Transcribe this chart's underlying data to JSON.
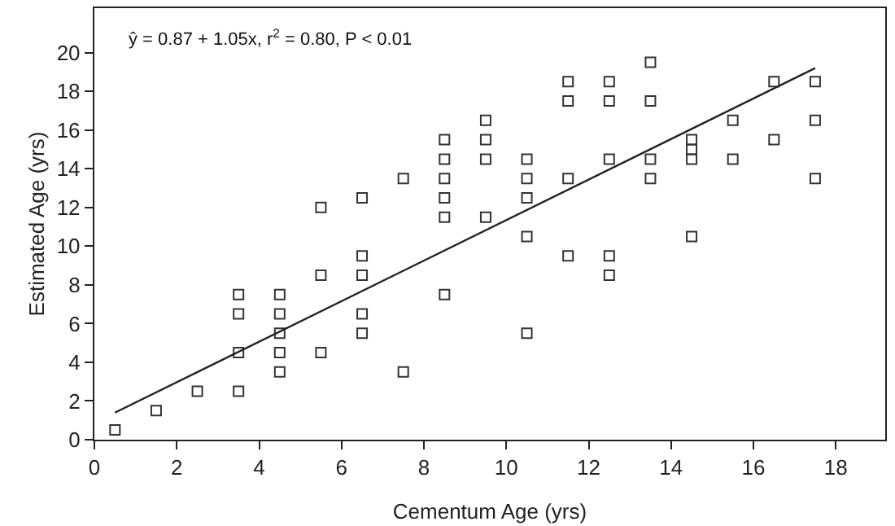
{
  "chart_data": {
    "type": "scatter",
    "xlabel": "Cementum Age (yrs)",
    "ylabel": "Estimated Age (yrs)",
    "xlim": [
      0,
      19.2
    ],
    "ylim": [
      0,
      22.3
    ],
    "xticks": [
      0,
      2,
      4,
      6,
      8,
      10,
      12,
      14,
      16,
      18
    ],
    "yticks": [
      0,
      2,
      4,
      6,
      8,
      10,
      12,
      14,
      16,
      18,
      20
    ],
    "marker": "square",
    "annotations": [
      {
        "text": "ŷ = 0.87 + 1.05x, r$^{2}$ = 0.80, P < 0.01"
      }
    ],
    "series": [
      {
        "color": "#333333",
        "x": [
          0.5,
          1.5,
          2.5,
          3.5,
          3.5,
          3.5,
          3.5,
          4.5,
          4.5,
          4.5,
          4.5,
          4.5,
          5.5,
          5.5,
          5.5,
          6.5,
          6.5,
          6.5,
          6.5,
          6.5,
          7.5,
          7.5,
          8.5,
          8.5,
          8.5,
          8.5,
          8.5,
          8.5,
          9.5,
          9.5,
          9.5,
          9.5,
          10.5,
          10.5,
          10.5,
          10.5,
          10.5,
          11.5,
          11.5,
          11.5,
          11.5,
          12.5,
          12.5,
          12.5,
          12.5,
          12.5,
          13.5,
          13.5,
          13.5,
          13.5,
          14.5,
          14.5,
          14.5,
          14.5,
          15.5,
          15.5,
          16.5,
          16.5,
          17.5,
          17.5,
          17.5
        ],
        "values": [
          0.5,
          1.5,
          2.5,
          7.5,
          6.5,
          4.5,
          2.5,
          7.5,
          6.5,
          5.5,
          4.5,
          3.5,
          12,
          8.5,
          4.5,
          12.5,
          9.5,
          8.5,
          6.5,
          5.5,
          13.5,
          3.5,
          15.5,
          14.5,
          13.5,
          12.5,
          11.5,
          7.5,
          16.5,
          15.5,
          14.5,
          11.5,
          14.5,
          13.5,
          12.5,
          10.5,
          5.5,
          18.5,
          17.5,
          13.5,
          9.5,
          18.5,
          17.5,
          14.5,
          9.5,
          8.5,
          19.5,
          17.5,
          14.5,
          13.5,
          15.5,
          15,
          14.5,
          10.5,
          16.5,
          14.5,
          18.5,
          15.5,
          18.5,
          16.5,
          13.5
        ]
      },
      {
        "type": "line",
        "color": "#222222",
        "line_style": "solid",
        "marker": "none",
        "x": [
          0.5,
          17.5
        ],
        "values": [
          1.4,
          19.2
        ]
      }
    ]
  }
}
